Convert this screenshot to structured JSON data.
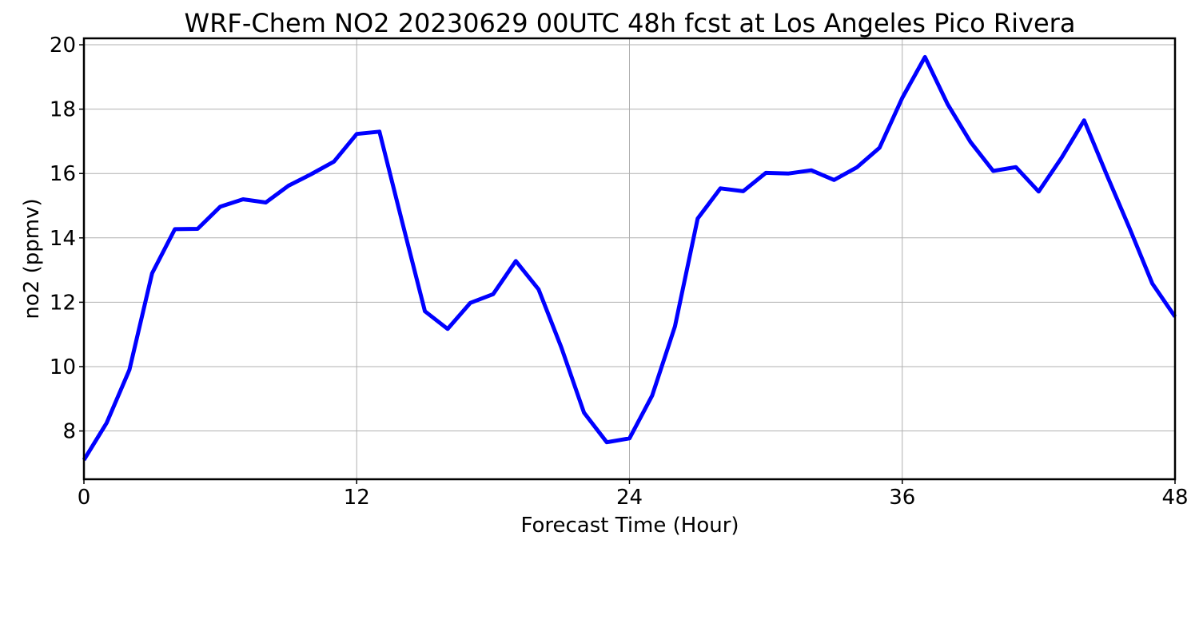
{
  "chart_data": {
    "type": "line",
    "title": "WRF-Chem NO2  20230629 00UTC 48h fcst at Los Angeles Pico Rivera",
    "xlabel": "Forecast Time (Hour)",
    "ylabel": "no2  (ppmv)",
    "xlim": [
      0,
      48
    ],
    "ylim": [
      6.5,
      20.2
    ],
    "xticks": [
      0,
      12,
      24,
      36,
      48
    ],
    "yticks": [
      8,
      10,
      12,
      14,
      16,
      18,
      20
    ],
    "grid": true,
    "line_color": "#0000ff",
    "series": [
      {
        "x": [
          0,
          1,
          2,
          3,
          4,
          5,
          6,
          7,
          8,
          9,
          10,
          11,
          12,
          13,
          14,
          15,
          16,
          17,
          18,
          19,
          20,
          21,
          22,
          23,
          24,
          25,
          26,
          27,
          28,
          29,
          30,
          31,
          32,
          33,
          34,
          35,
          36,
          37,
          38,
          39,
          40,
          41,
          42,
          43,
          44,
          45,
          46,
          47,
          48
        ],
        "values": [
          7.1,
          8.25,
          9.9,
          12.9,
          14.27,
          14.28,
          14.97,
          15.2,
          15.1,
          15.62,
          15.98,
          16.37,
          17.23,
          17.3,
          14.5,
          11.72,
          11.17,
          11.98,
          12.25,
          13.28,
          12.4,
          10.6,
          8.57,
          7.65,
          7.77,
          9.1,
          11.25,
          14.6,
          15.54,
          15.45,
          16.02,
          16.0,
          16.1,
          15.8,
          16.19,
          16.8,
          18.35,
          19.62,
          18.15,
          16.98,
          16.08,
          16.2,
          15.44,
          16.48,
          17.65,
          15.95,
          14.3,
          12.58,
          11.55
        ]
      }
    ]
  }
}
